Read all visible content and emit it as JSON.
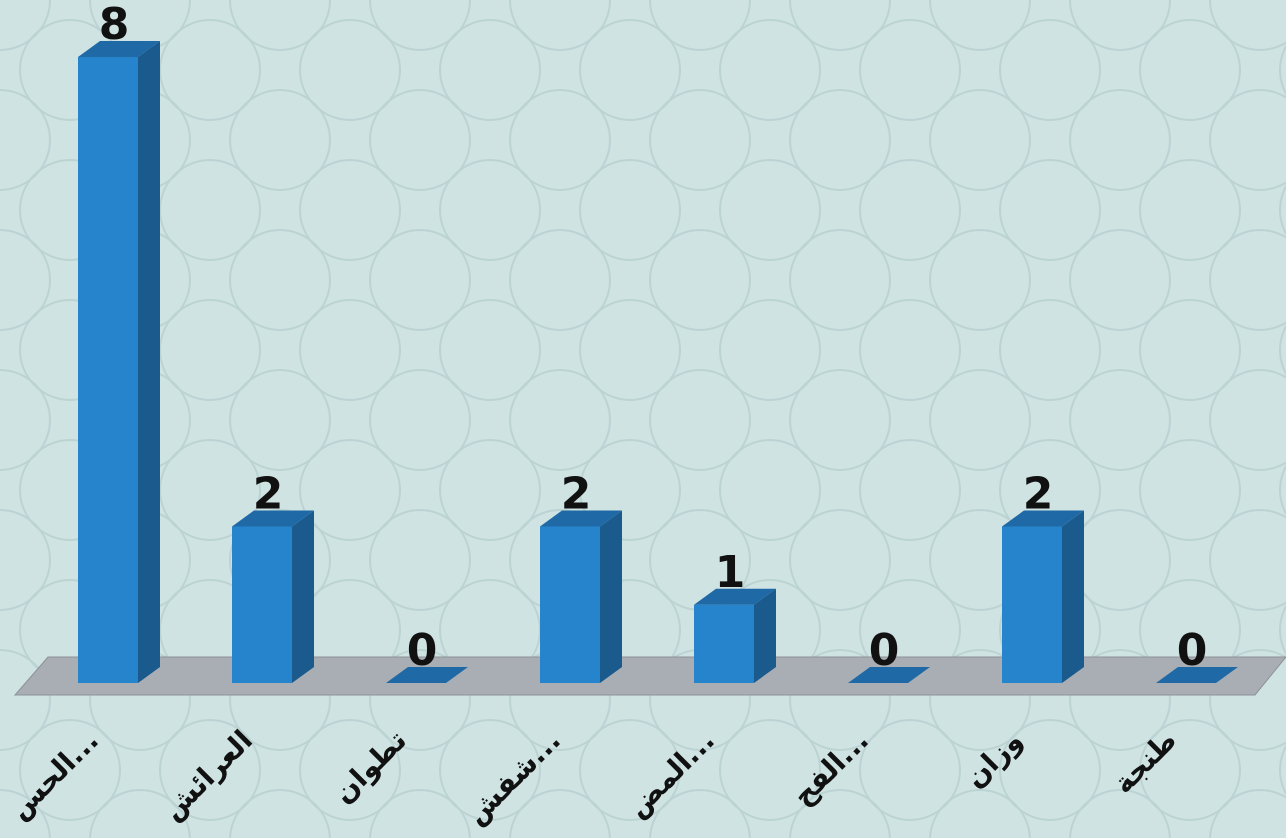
{
  "chart_data": {
    "type": "bar3d",
    "categories": [
      "الحس...",
      "العرائش",
      "تطوان",
      "شفش...",
      "المض...",
      "الفح...",
      "وزان",
      "طنجة"
    ],
    "values": [
      8,
      2,
      0,
      2,
      1,
      0,
      2,
      0
    ],
    "color": "#2584cc",
    "ylim": [
      0,
      8
    ]
  }
}
